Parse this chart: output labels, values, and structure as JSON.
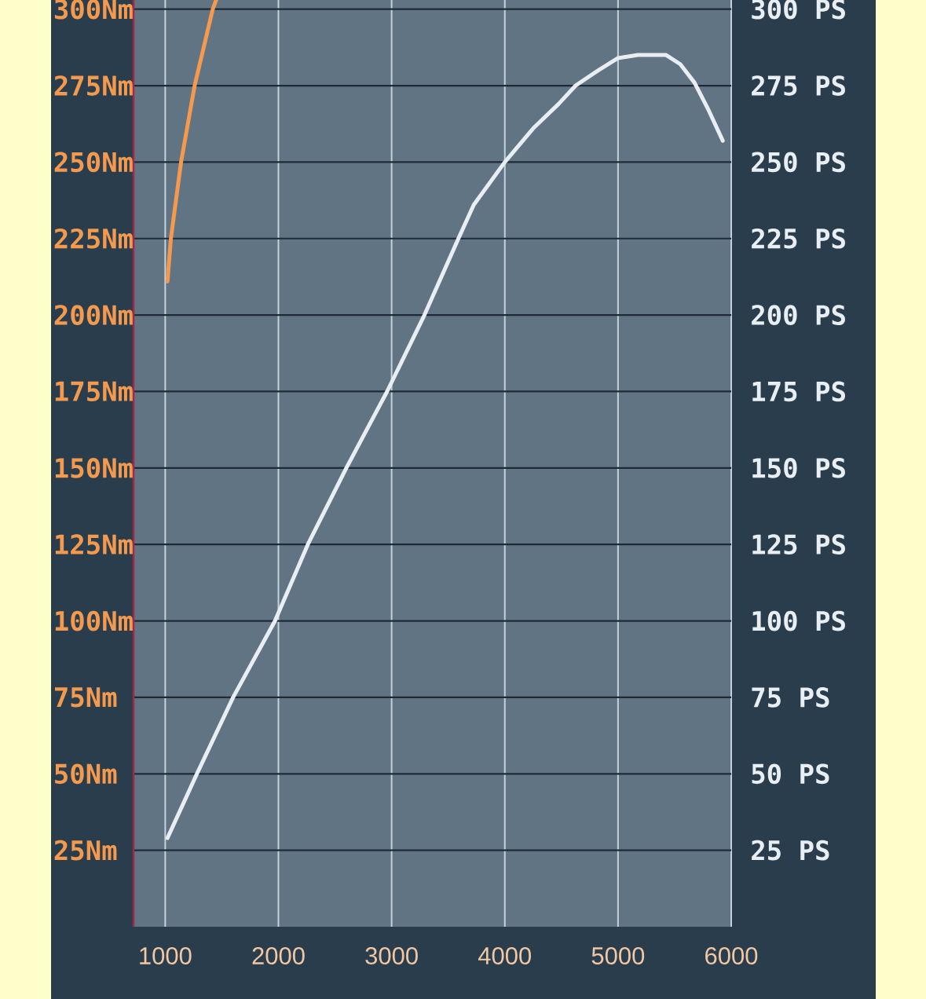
{
  "chart_data": {
    "type": "line",
    "series": [
      {
        "color": "#f39a4e",
        "x": [
          1020,
          1050,
          1140,
          1260,
          1420,
          1450
        ],
        "values": [
          211,
          225,
          250,
          275,
          300,
          303
        ]
      },
      {
        "color": "#e8eef2",
        "axis": "y2",
        "x": [
          1020,
          1280,
          1600,
          1970,
          2260,
          2600,
          2960,
          3290,
          3590,
          3725,
          4000,
          4250,
          4475,
          4625,
          4825,
          5000,
          5175,
          5425,
          5550,
          5675,
          5800,
          5925
        ],
        "values": [
          29,
          50,
          75,
          100,
          125,
          150,
          175,
          200,
          225,
          236,
          250,
          261,
          269,
          275,
          280,
          284,
          285,
          285,
          282,
          276,
          267,
          257
        ]
      }
    ],
    "xlim": [
      720,
      6000
    ],
    "xticks": [
      1000,
      2000,
      3000,
      4000,
      5000,
      6000
    ],
    "ylim": [
      0,
      303
    ],
    "yticks": [
      {
        "value": 25,
        "label": "25Nm"
      },
      {
        "value": 50,
        "label": "50Nm"
      },
      {
        "value": 75,
        "label": "75Nm"
      },
      {
        "value": 100,
        "label": "100Nm"
      },
      {
        "value": 125,
        "label": "125Nm"
      },
      {
        "value": 150,
        "label": "150Nm"
      },
      {
        "value": 175,
        "label": "175Nm"
      },
      {
        "value": 200,
        "label": "200Nm"
      },
      {
        "value": 225,
        "label": "225Nm"
      },
      {
        "value": 250,
        "label": "250Nm"
      },
      {
        "value": 275,
        "label": "275Nm"
      },
      {
        "value": 300,
        "label": "300Nm"
      }
    ],
    "y2lim": [
      0,
      303
    ],
    "y2ticks": [
      {
        "value": 25,
        "label": "25 PS"
      },
      {
        "value": 50,
        "label": "50 PS"
      },
      {
        "value": 75,
        "label": "75 PS"
      },
      {
        "value": 100,
        "label": "100 PS"
      },
      {
        "value": 125,
        "label": "125 PS"
      },
      {
        "value": 150,
        "label": "150 PS"
      },
      {
        "value": 175,
        "label": "175 PS"
      },
      {
        "value": 200,
        "label": "200 PS"
      },
      {
        "value": 225,
        "label": "225 PS"
      },
      {
        "value": 250,
        "label": "250 PS"
      },
      {
        "value": 275,
        "label": "275 PS"
      },
      {
        "value": 300,
        "label": "300 PS"
      }
    ],
    "grid": true
  }
}
